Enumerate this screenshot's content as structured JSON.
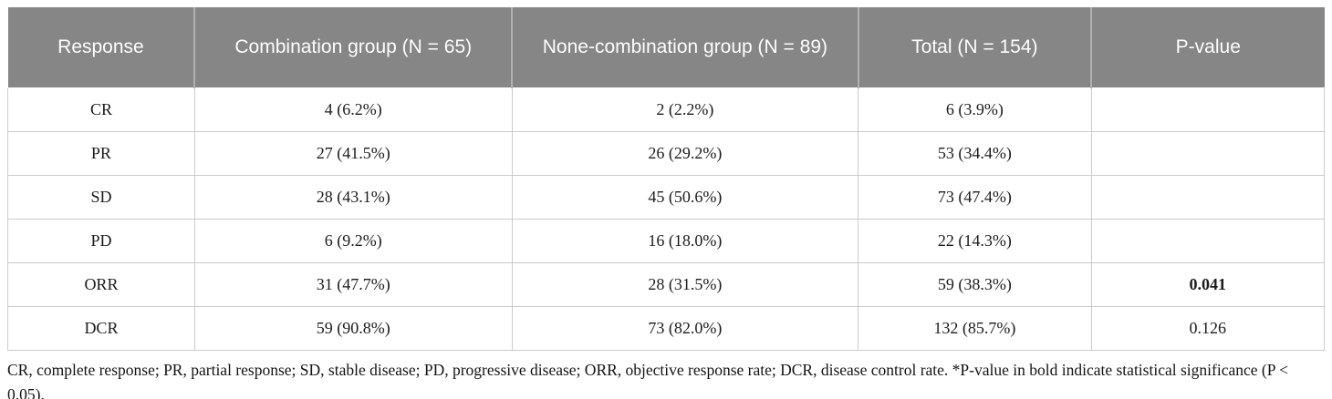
{
  "table": {
    "columns": [
      {
        "label": "Response"
      },
      {
        "label": "Combination group (N = 65)"
      },
      {
        "label": "None-combination group (N = 89)"
      },
      {
        "label": "Total (N = 154)"
      },
      {
        "label": "P-value"
      }
    ],
    "rows": [
      {
        "cells": [
          "CR",
          "4 (6.2%)",
          "2 (2.2%)",
          "6 (3.9%)",
          ""
        ]
      },
      {
        "cells": [
          "PR",
          "27 (41.5%)",
          "26 (29.2%)",
          "53 (34.4%)",
          ""
        ]
      },
      {
        "cells": [
          "SD",
          "28 (43.1%)",
          "45 (50.6%)",
          "73 (47.4%)",
          ""
        ]
      },
      {
        "cells": [
          "PD",
          "6 (9.2%)",
          "16 (18.0%)",
          "22 (14.3%)",
          ""
        ]
      },
      {
        "cells": [
          "ORR",
          "31 (47.7%)",
          "28 (31.5%)",
          "59 (38.3%)",
          "0.041"
        ]
      },
      {
        "cells": [
          "DCR",
          "59 (90.8%)",
          "73 (82.0%)",
          "132 (85.7%)",
          "0.126"
        ]
      }
    ]
  },
  "footnote": "CR, complete response; PR, partial response; SD, stable disease; PD, progressive disease; ORR, objective response rate; DCR, disease control rate. *P-value in bold indicate statistical significance (P < 0.05).",
  "colors": {
    "header_bg": "#868686",
    "header_text": "#fdfdfd",
    "body_border": "#cbcbcb",
    "body_text": "#1c1c1c"
  }
}
